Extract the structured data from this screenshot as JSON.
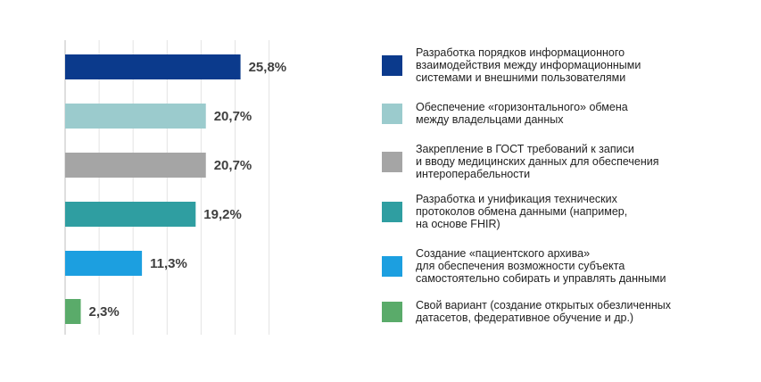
{
  "colors": [
    "#0b3a8c",
    "#9bcbcd",
    "#a5a5a5",
    "#2f9ea1",
    "#1c9fe0",
    "#5aab6a"
  ],
  "chart_data": {
    "type": "bar",
    "orientation": "horizontal",
    "xlim": [
      0,
      30
    ],
    "grid": "vertical",
    "legend": "right",
    "value_suffix": "%",
    "categories": [
      "Разработка порядков информационного\nвзаимодействия между информационными\nсистемами и внешними пользователями",
      "Обеспечение «горизонтального» обмена\nмежду владельцами данных",
      "Закрепление в ГОСТ требований к записи\nи вводу медицинских данных для обеспечения\nинтероперабельности",
      "Разработка и унификация технических\nпротоколов обмена данными (например,\nна основе FHIR)",
      "Создание «пациентского архива»\nдля обеспечения возможности субъекта\nсамостоятельно собирать и управлять данными",
      "Свой вариант (создание открытых обезличенных\nдатасетов, федеративное обучение и др.)"
    ],
    "values": [
      25.8,
      20.7,
      20.7,
      19.2,
      11.3,
      2.3
    ],
    "value_labels": [
      "25,8%",
      "20,7%",
      "20,7%",
      "19,2%",
      "11,3%",
      "2,3%"
    ]
  }
}
